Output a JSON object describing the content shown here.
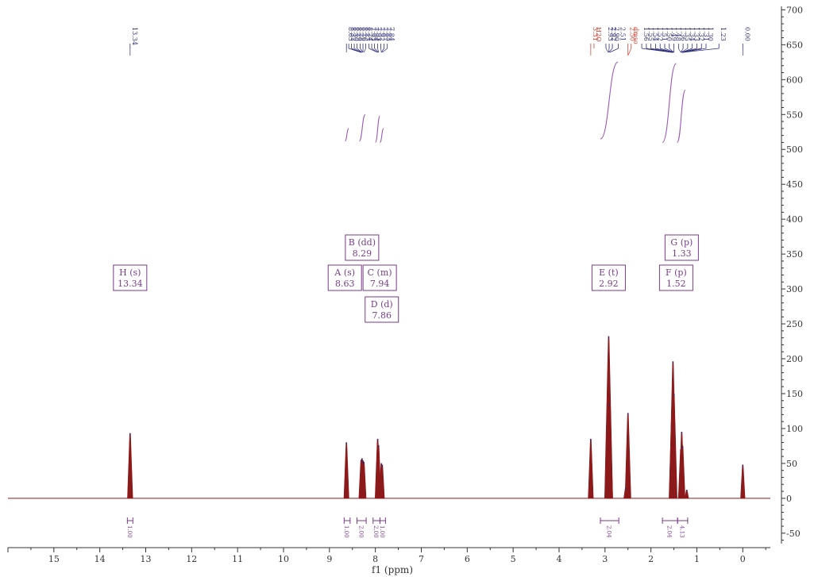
{
  "chart_data": {
    "type": "line",
    "xlabel": "f1 (ppm)",
    "x_ticks": [
      15,
      14,
      13,
      12,
      11,
      10,
      9,
      8,
      7,
      6,
      5,
      4,
      3,
      2,
      1,
      0
    ],
    "xlim": [
      16.0,
      -0.6
    ],
    "y_ticks": [
      700,
      650,
      600,
      550,
      500,
      450,
      400,
      350,
      300,
      250,
      200,
      150,
      100,
      50,
      0,
      -50
    ],
    "ylim": [
      -65,
      705
    ],
    "peaks": [
      {
        "ppm": 13.34,
        "height": 93
      },
      {
        "ppm": 8.63,
        "height": 80
      },
      {
        "ppm": 8.31,
        "height": 55
      },
      {
        "ppm": 8.29,
        "height": 57
      },
      {
        "ppm": 8.27,
        "height": 54
      },
      {
        "ppm": 8.25,
        "height": 52
      },
      {
        "ppm": 7.95,
        "height": 85
      },
      {
        "ppm": 7.93,
        "height": 76
      },
      {
        "ppm": 7.87,
        "height": 50
      },
      {
        "ppm": 7.85,
        "height": 48
      },
      {
        "ppm": 3.31,
        "height": 85
      },
      {
        "ppm": 2.93,
        "height": 135
      },
      {
        "ppm": 2.92,
        "height": 232
      },
      {
        "ppm": 2.9,
        "height": 135
      },
      {
        "ppm": 2.5,
        "height": 122
      },
      {
        "ppm": 2.55,
        "height": 15
      },
      {
        "ppm": 1.54,
        "height": 130
      },
      {
        "ppm": 1.52,
        "height": 196
      },
      {
        "ppm": 1.5,
        "height": 150
      },
      {
        "ppm": 1.35,
        "height": 70
      },
      {
        "ppm": 1.33,
        "height": 95
      },
      {
        "ppm": 1.31,
        "height": 75
      },
      {
        "ppm": 1.22,
        "height": 12
      },
      {
        "ppm": 0.0,
        "height": 48
      }
    ],
    "peak_labels": [
      {
        "ppm": 13.34,
        "text": "13.34",
        "color": "#2b2d7a"
      },
      {
        "ppm": 8.63,
        "text": "8.63",
        "color": "#2b2d7a"
      },
      {
        "ppm": 8.58,
        "text": "8.32",
        "color": "#2b2d7a"
      },
      {
        "ppm": 8.52,
        "text": "8.30",
        "color": "#2b2d7a"
      },
      {
        "ppm": 8.46,
        "text": "8.29",
        "color": "#2b2d7a"
      },
      {
        "ppm": 8.4,
        "text": "8.28",
        "color": "#2b2d7a"
      },
      {
        "ppm": 8.33,
        "text": "8.26",
        "color": "#2b2d7a"
      },
      {
        "ppm": 8.27,
        "text": "8.25",
        "color": "#2b2d7a"
      },
      {
        "ppm": 8.21,
        "text": "8.24",
        "color": "#2b2d7a"
      },
      {
        "ppm": 8.14,
        "text": "7.95",
        "color": "#2b2d7a"
      },
      {
        "ppm": 8.08,
        "text": "7.94",
        "color": "#2b2d7a"
      },
      {
        "ppm": 8.02,
        "text": "7.93",
        "color": "#2b2d7a"
      },
      {
        "ppm": 7.95,
        "text": "7.92",
        "color": "#2b2d7a"
      },
      {
        "ppm": 7.88,
        "text": "7.87",
        "color": "#2b2d7a"
      },
      {
        "ppm": 7.81,
        "text": "7.85",
        "color": "#2b2d7a"
      },
      {
        "ppm": 7.74,
        "text": "7.84",
        "color": "#2b2d7a"
      },
      {
        "ppm": 3.31,
        "text": "3.31",
        "color": "#d23a2a"
      },
      {
        "ppm": 3.24,
        "text": "H2O",
        "color": "#d23a2a"
      },
      {
        "ppm": 2.98,
        "text": "2.93",
        "color": "#2b2d7a"
      },
      {
        "ppm": 2.91,
        "text": "2.92",
        "color": "#2b2d7a"
      },
      {
        "ppm": 2.84,
        "text": "2.90",
        "color": "#2b2d7a"
      },
      {
        "ppm": 2.71,
        "text": "2.51",
        "color": "#2b2d7a"
      },
      {
        "ppm": 2.5,
        "text": "2.50",
        "color": "#d23a2a"
      },
      {
        "ppm": 2.43,
        "text": "dmso",
        "color": "#d23a2a"
      },
      {
        "ppm": 2.2,
        "text": "1.56",
        "color": "#2b2d7a"
      },
      {
        "ppm": 2.1,
        "text": "1.55",
        "color": "#2b2d7a"
      },
      {
        "ppm": 2.0,
        "text": "1.54",
        "color": "#2b2d7a"
      },
      {
        "ppm": 1.9,
        "text": "1.52",
        "color": "#2b2d7a"
      },
      {
        "ppm": 1.8,
        "text": "1.51",
        "color": "#2b2d7a"
      },
      {
        "ppm": 1.7,
        "text": "1.50",
        "color": "#2b2d7a"
      },
      {
        "ppm": 1.6,
        "text": "1.49",
        "color": "#2b2d7a"
      },
      {
        "ppm": 1.5,
        "text": "1.48",
        "color": "#2b2d7a"
      },
      {
        "ppm": 1.4,
        "text": "1.36",
        "color": "#2b2d7a"
      },
      {
        "ppm": 1.3,
        "text": "1.35",
        "color": "#2b2d7a"
      },
      {
        "ppm": 1.2,
        "text": "1.34",
        "color": "#2b2d7a"
      },
      {
        "ppm": 1.1,
        "text": "1.33",
        "color": "#2b2d7a"
      },
      {
        "ppm": 1.0,
        "text": "1.32",
        "color": "#2b2d7a"
      },
      {
        "ppm": 0.9,
        "text": "1.31",
        "color": "#2b2d7a"
      },
      {
        "ppm": 0.8,
        "text": "1.30",
        "color": "#2b2d7a"
      },
      {
        "ppm": 0.52,
        "text": "1.23",
        "color": "#2b2d7a"
      },
      {
        "ppm": 0.0,
        "text": "0.00",
        "color": "#2b2d7a"
      }
    ],
    "multiplets": [
      {
        "label": "H (s)",
        "value": "13.34",
        "ppm": 13.34
      },
      {
        "label": "A (s)",
        "value": "8.63",
        "ppm": 8.63
      },
      {
        "label": "B (dd)",
        "value": "8.29",
        "ppm": 8.29
      },
      {
        "label": "C (m)",
        "value": "7.94",
        "ppm": 7.94
      },
      {
        "label": "D (d)",
        "value": "7.86",
        "ppm": 7.86
      },
      {
        "label": "E (t)",
        "value": "2.92",
        "ppm": 2.92
      },
      {
        "label": "F (p)",
        "value": "1.52",
        "ppm": 1.52
      },
      {
        "label": "G (p)",
        "value": "1.33",
        "ppm": 1.33
      }
    ],
    "integral_curves": [
      {
        "from": 8.66,
        "to": 8.58,
        "bottom": 512,
        "top": 530
      },
      {
        "from": 8.35,
        "to": 8.22,
        "bottom": 512,
        "top": 550
      },
      {
        "from": 8.0,
        "to": 7.9,
        "bottom": 510,
        "top": 548
      },
      {
        "from": 7.9,
        "to": 7.82,
        "bottom": 510,
        "top": 530
      },
      {
        "from": 3.1,
        "to": 2.72,
        "bottom": 515,
        "top": 625
      },
      {
        "from": 1.75,
        "to": 1.45,
        "bottom": 510,
        "top": 623
      },
      {
        "from": 1.43,
        "to": 1.25,
        "bottom": 510,
        "top": 585
      }
    ],
    "integrations": [
      {
        "from": 13.4,
        "to": 13.28,
        "value": "1.00"
      },
      {
        "from": 8.68,
        "to": 8.55,
        "value": "1.00"
      },
      {
        "from": 8.4,
        "to": 8.2,
        "value": "2.00"
      },
      {
        "from": 8.05,
        "to": 7.9,
        "value": "2.00"
      },
      {
        "from": 7.9,
        "to": 7.78,
        "value": "1.00"
      },
      {
        "from": 3.1,
        "to": 2.7,
        "value": "2.04"
      },
      {
        "from": 1.75,
        "to": 1.42,
        "value": "2.04"
      },
      {
        "from": 1.42,
        "to": 1.2,
        "value": "4.13"
      }
    ]
  },
  "colors": {
    "spectrum": "#8c1a1a",
    "assign": "#2b2d7a",
    "solvent": "#d23a2a",
    "integral": "#9b59b6",
    "box": "#7a3a8a",
    "axis": "#333333"
  }
}
